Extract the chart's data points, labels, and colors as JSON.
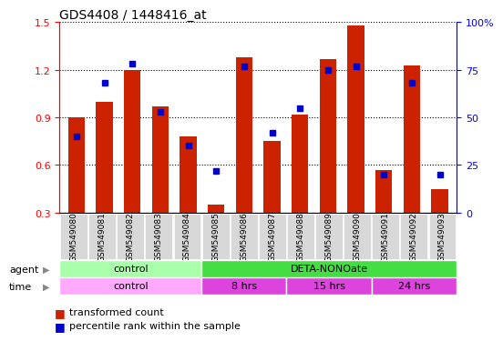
{
  "title": "GDS4408 / 1448416_at",
  "samples": [
    "GSM549080",
    "GSM549081",
    "GSM549082",
    "GSM549083",
    "GSM549084",
    "GSM549085",
    "GSM549086",
    "GSM549087",
    "GSM549088",
    "GSM549089",
    "GSM549090",
    "GSM549091",
    "GSM549092",
    "GSM549093"
  ],
  "red_values": [
    0.9,
    1.0,
    1.2,
    0.97,
    0.78,
    0.35,
    1.28,
    0.75,
    0.92,
    1.27,
    1.48,
    0.57,
    1.23,
    0.45
  ],
  "blue_percentile": [
    40,
    68,
    78,
    53,
    35,
    22,
    77,
    42,
    55,
    75,
    77,
    20,
    68,
    20
  ],
  "ylim_left": [
    0.3,
    1.5
  ],
  "ylim_right": [
    0,
    100
  ],
  "yticks_left": [
    0.3,
    0.6,
    0.9,
    1.2,
    1.5
  ],
  "yticks_right": [
    0,
    25,
    50,
    75,
    100
  ],
  "ytick_labels_right": [
    "0",
    "25",
    "50",
    "75",
    "100%"
  ],
  "agent_groups": [
    {
      "label": "control",
      "start": 0,
      "end": 4,
      "color": "#aaffaa"
    },
    {
      "label": "DETA-NONOate",
      "start": 5,
      "end": 13,
      "color": "#44dd44"
    }
  ],
  "time_groups": [
    {
      "label": "control",
      "start": 0,
      "end": 4,
      "color": "#ffaaff"
    },
    {
      "label": "8 hrs",
      "start": 5,
      "end": 7,
      "color": "#dd44dd"
    },
    {
      "label": "15 hrs",
      "start": 8,
      "end": 10,
      "color": "#dd44dd"
    },
    {
      "label": "24 hrs",
      "start": 11,
      "end": 13,
      "color": "#dd44dd"
    }
  ],
  "bar_color": "#cc2200",
  "dot_color": "#0000cc",
  "bar_bottom": 0.3,
  "legend_red": "transformed count",
  "legend_blue": "percentile rank within the sample",
  "agent_label": "agent",
  "time_label": "time",
  "bar_width": 0.6
}
